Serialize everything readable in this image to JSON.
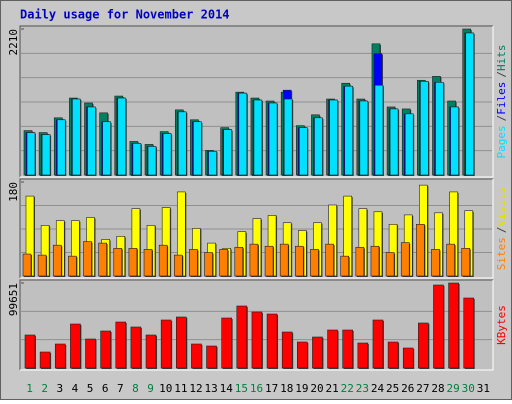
{
  "chart_data": [
    {
      "type": "bar",
      "title": "Daily usage for November 2014",
      "categories": [
        "1",
        "2",
        "3",
        "4",
        "5",
        "6",
        "7",
        "8",
        "9",
        "10",
        "11",
        "12",
        "13",
        "14",
        "15",
        "16",
        "17",
        "18",
        "19",
        "20",
        "21",
        "22",
        "23",
        "24",
        "25",
        "26",
        "27",
        "28",
        "29",
        "30",
        "31"
      ],
      "series": [
        {
          "name": "Hits",
          "color": "#008060",
          "values": [
            672,
            642,
            866,
            1165,
            1090,
            941,
            1195,
            508,
            463,
            657,
            986,
            836,
            373,
            717,
            1254,
            1165,
            1120,
            1254,
            747,
            911,
            1150,
            1389,
            1150,
            1986,
            1030,
            1000,
            1434,
            1493,
            1120,
            2210,
            0
          ]
        },
        {
          "name": "Files",
          "color": "#0000ff",
          "values": [
            642,
            612,
            836,
            1150,
            1030,
            806,
            1165,
            478,
            433,
            627,
            956,
            806,
            358,
            687,
            1239,
            1135,
            1090,
            1284,
            717,
            866,
            1135,
            1344,
            1120,
            1837,
            1000,
            926,
            1418,
            1403,
            1030,
            2150,
            0
          ]
        },
        {
          "name": "Pages",
          "color": "#00e0ff",
          "values": [
            642,
            612,
            836,
            1150,
            1030,
            806,
            1165,
            478,
            433,
            627,
            956,
            806,
            358,
            687,
            1239,
            1135,
            1090,
            1150,
            717,
            866,
            1135,
            1344,
            1120,
            1359,
            1000,
            926,
            1418,
            1403,
            1030,
            2150,
            0
          ]
        }
      ],
      "legend_separator": "/",
      "ylim": [
        0,
        2210
      ],
      "yticks": [
        2210
      ],
      "grid": true
    },
    {
      "type": "bar",
      "categories": [
        "1",
        "2",
        "3",
        "4",
        "5",
        "6",
        "7",
        "8",
        "9",
        "10",
        "11",
        "12",
        "13",
        "14",
        "15",
        "16",
        "17",
        "18",
        "19",
        "20",
        "21",
        "22",
        "23",
        "24",
        "25",
        "26",
        "27",
        "28",
        "29",
        "30",
        "31"
      ],
      "series": [
        {
          "name": "Visits",
          "color": "#ffff00",
          "values": [
            153,
            97,
            106,
            106,
            112,
            70,
            76,
            129,
            97,
            131,
            161,
            91,
            63,
            53,
            85,
            110,
            116,
            102,
            87,
            102,
            136,
            153,
            129,
            123,
            99,
            117,
            174,
            121,
            161,
            125,
            0
          ]
        },
        {
          "name": "Sites",
          "color": "#ff8000",
          "values": [
            42,
            40,
            59,
            38,
            66,
            63,
            53,
            53,
            51,
            59,
            40,
            51,
            45,
            51,
            55,
            61,
            57,
            61,
            57,
            51,
            61,
            38,
            55,
            57,
            45,
            64,
            99,
            51,
            61,
            53,
            0
          ]
        }
      ],
      "legend_separator": "/",
      "ylim": [
        0,
        180
      ],
      "yticks": [
        180
      ],
      "grid": true
    },
    {
      "type": "bar",
      "categories": [
        "1",
        "2",
        "3",
        "4",
        "5",
        "6",
        "7",
        "8",
        "9",
        "10",
        "11",
        "12",
        "13",
        "14",
        "15",
        "16",
        "17",
        "18",
        "19",
        "20",
        "21",
        "22",
        "23",
        "24",
        "25",
        "26",
        "27",
        "28",
        "29",
        "30",
        "31"
      ],
      "category_colors": [
        "#008040",
        "#008040",
        "#000000",
        "#000000",
        "#000000",
        "#000000",
        "#000000",
        "#008040",
        "#008040",
        "#000000",
        "#000000",
        "#000000",
        "#000000",
        "#000000",
        "#008040",
        "#008040",
        "#000000",
        "#000000",
        "#000000",
        "#000000",
        "#000000",
        "#008040",
        "#008040",
        "#000000",
        "#000000",
        "#000000",
        "#000000",
        "#000000",
        "#008040",
        "#008040",
        "#000000"
      ],
      "series": [
        {
          "name": "KBytes",
          "color": "#ff0000",
          "values": [
            38688,
            18758,
            28137,
            51584,
            33998,
            43377,
            53929,
            48066,
            38688,
            56273,
            59790,
            28137,
            25792,
            58618,
            72686,
            65652,
            63307,
            42205,
            30481,
            36343,
            44550,
            44550,
            29309,
            56273,
            30481,
            23447,
            52756,
            97306,
            99651,
            82066,
            0
          ]
        }
      ],
      "ylim": [
        0,
        99651
      ],
      "yticks": [
        99651
      ],
      "grid": true
    }
  ]
}
